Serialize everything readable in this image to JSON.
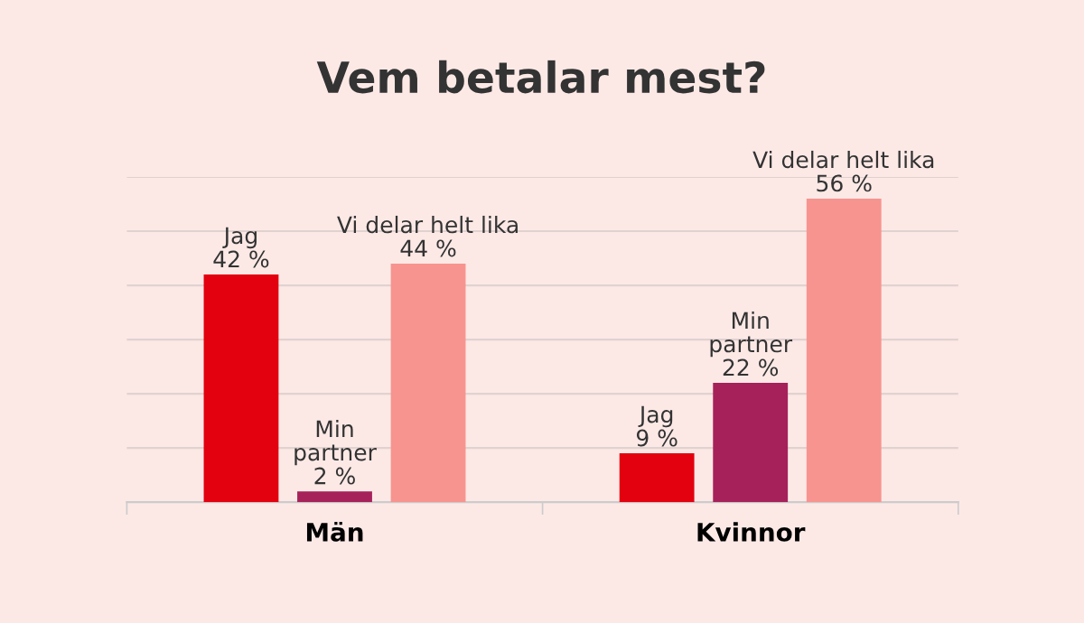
{
  "chart_data": {
    "type": "bar",
    "title": "Vem betalar mest?",
    "categories": [
      "Män",
      "Kvinnor"
    ],
    "series": [
      {
        "name": "Jag",
        "color": "#e3000f",
        "values": [
          42,
          9
        ],
        "value_labels": [
          "42 %",
          "9 %"
        ]
      },
      {
        "name": "Min\npartner",
        "color": "#a6215a",
        "values": [
          2,
          22
        ],
        "value_labels": [
          "2 %",
          "22 %"
        ]
      },
      {
        "name": "Vi delar helt lika",
        "color": "#f7948f",
        "values": [
          44,
          56
        ],
        "value_labels": [
          "44 %",
          "56 %"
        ]
      }
    ],
    "ylim": [
      0,
      60
    ],
    "yticks": [
      {
        "value": 10,
        "label": null
      },
      {
        "value": 20,
        "label": null
      },
      {
        "value": 30,
        "label": null
      },
      {
        "value": 40,
        "label": null
      },
      {
        "value": 50,
        "label": null
      },
      {
        "value": 60,
        "label": null
      }
    ],
    "grid": "y",
    "tick_labels": "x",
    "legend": false
  }
}
